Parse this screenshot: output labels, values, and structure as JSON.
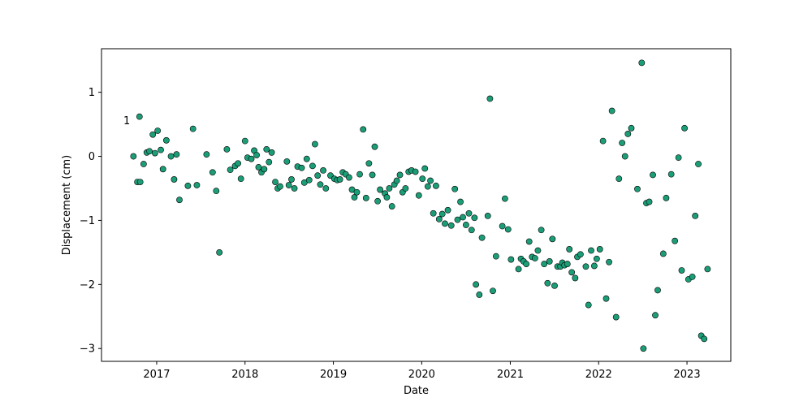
{
  "chart_data": {
    "type": "scatter",
    "title": "",
    "xlabel": "Date",
    "ylabel": "Displacement (cm)",
    "annotation": "1",
    "x_ticks": [
      "2017",
      "2018",
      "2019",
      "2020",
      "2021",
      "2022",
      "2023"
    ],
    "y_ticks": [
      -3,
      -2,
      -1,
      0,
      1
    ],
    "xlim": [
      "2016-05-18",
      "2023-07-01"
    ],
    "ylim": [
      -3.2,
      1.68
    ],
    "grid": false,
    "marker_color": "#1b9e77",
    "marker_edge_color": "#000000",
    "points": [
      {
        "x": "2016-09-27",
        "y": 0.0
      },
      {
        "x": "2016-10-13",
        "y": -0.4
      },
      {
        "x": "2016-10-22",
        "y": 0.62
      },
      {
        "x": "2016-10-25",
        "y": -0.4
      },
      {
        "x": "2016-11-08",
        "y": -0.12
      },
      {
        "x": "2016-11-21",
        "y": 0.06
      },
      {
        "x": "2016-12-02",
        "y": 0.08
      },
      {
        "x": "2016-12-16",
        "y": 0.34
      },
      {
        "x": "2016-12-25",
        "y": 0.05
      },
      {
        "x": "2017-01-05",
        "y": 0.4
      },
      {
        "x": "2017-01-18",
        "y": 0.1
      },
      {
        "x": "2017-01-27",
        "y": -0.2
      },
      {
        "x": "2017-02-10",
        "y": 0.25
      },
      {
        "x": "2017-03-01",
        "y": 0.0
      },
      {
        "x": "2017-03-14",
        "y": -0.36
      },
      {
        "x": "2017-03-24",
        "y": 0.03
      },
      {
        "x": "2017-04-05",
        "y": -0.68
      },
      {
        "x": "2017-05-10",
        "y": -0.46
      },
      {
        "x": "2017-05-31",
        "y": 0.43
      },
      {
        "x": "2017-06-16",
        "y": -0.45
      },
      {
        "x": "2017-07-26",
        "y": 0.03
      },
      {
        "x": "2017-08-20",
        "y": -0.25
      },
      {
        "x": "2017-09-04",
        "y": -0.54
      },
      {
        "x": "2017-09-17",
        "y": -1.5
      },
      {
        "x": "2017-10-18",
        "y": 0.11
      },
      {
        "x": "2017-11-01",
        "y": -0.21
      },
      {
        "x": "2017-11-21",
        "y": -0.15
      },
      {
        "x": "2017-12-03",
        "y": -0.11
      },
      {
        "x": "2017-12-15",
        "y": -0.35
      },
      {
        "x": "2018-01-01",
        "y": 0.24
      },
      {
        "x": "2018-01-11",
        "y": -0.02
      },
      {
        "x": "2018-01-27",
        "y": -0.04
      },
      {
        "x": "2018-02-08",
        "y": 0.09
      },
      {
        "x": "2018-02-18",
        "y": 0.02
      },
      {
        "x": "2018-02-26",
        "y": -0.17
      },
      {
        "x": "2018-03-10",
        "y": -0.25
      },
      {
        "x": "2018-03-21",
        "y": -0.2
      },
      {
        "x": "2018-03-31",
        "y": 0.11
      },
      {
        "x": "2018-04-10",
        "y": -0.09
      },
      {
        "x": "2018-04-21",
        "y": 0.06
      },
      {
        "x": "2018-05-06",
        "y": -0.4
      },
      {
        "x": "2018-05-16",
        "y": -0.5
      },
      {
        "x": "2018-05-26",
        "y": -0.47
      },
      {
        "x": "2018-06-23",
        "y": -0.08
      },
      {
        "x": "2018-07-01",
        "y": -0.45
      },
      {
        "x": "2018-07-12",
        "y": -0.36
      },
      {
        "x": "2018-07-24",
        "y": -0.5
      },
      {
        "x": "2018-08-06",
        "y": -0.16
      },
      {
        "x": "2018-08-23",
        "y": -0.18
      },
      {
        "x": "2018-09-03",
        "y": -0.41
      },
      {
        "x": "2018-09-13",
        "y": -0.04
      },
      {
        "x": "2018-09-23",
        "y": -0.37
      },
      {
        "x": "2018-10-07",
        "y": -0.15
      },
      {
        "x": "2018-10-17",
        "y": 0.19
      },
      {
        "x": "2018-10-28",
        "y": -0.3
      },
      {
        "x": "2018-11-08",
        "y": -0.44
      },
      {
        "x": "2018-11-20",
        "y": -0.22
      },
      {
        "x": "2018-12-01",
        "y": -0.5
      },
      {
        "x": "2018-12-20",
        "y": -0.3
      },
      {
        "x": "2019-01-05",
        "y": -0.35
      },
      {
        "x": "2019-01-17",
        "y": -0.37
      },
      {
        "x": "2019-01-28",
        "y": -0.36
      },
      {
        "x": "2019-02-09",
        "y": -0.25
      },
      {
        "x": "2019-02-21",
        "y": -0.28
      },
      {
        "x": "2019-03-07",
        "y": -0.33
      },
      {
        "x": "2019-03-19",
        "y": -0.52
      },
      {
        "x": "2019-03-29",
        "y": -0.64
      },
      {
        "x": "2019-04-08",
        "y": -0.56
      },
      {
        "x": "2019-04-20",
        "y": -0.28
      },
      {
        "x": "2019-05-04",
        "y": 0.42
      },
      {
        "x": "2019-05-16",
        "y": -0.65
      },
      {
        "x": "2019-05-28",
        "y": -0.11
      },
      {
        "x": "2019-06-11",
        "y": -0.29
      },
      {
        "x": "2019-06-21",
        "y": 0.15
      },
      {
        "x": "2019-07-03",
        "y": -0.7
      },
      {
        "x": "2019-07-13",
        "y": -0.52
      },
      {
        "x": "2019-08-02",
        "y": -0.58
      },
      {
        "x": "2019-08-10",
        "y": -0.64
      },
      {
        "x": "2019-08-20",
        "y": -0.5
      },
      {
        "x": "2019-08-31",
        "y": -0.78
      },
      {
        "x": "2019-09-10",
        "y": -0.44
      },
      {
        "x": "2019-09-20",
        "y": -0.38
      },
      {
        "x": "2019-10-03",
        "y": -0.29
      },
      {
        "x": "2019-10-14",
        "y": -0.56
      },
      {
        "x": "2019-10-26",
        "y": -0.5
      },
      {
        "x": "2019-11-08",
        "y": -0.24
      },
      {
        "x": "2019-11-20",
        "y": -0.22
      },
      {
        "x": "2019-12-06",
        "y": -0.24
      },
      {
        "x": "2019-12-20",
        "y": -0.61
      },
      {
        "x": "2020-01-04",
        "y": -0.35
      },
      {
        "x": "2020-01-14",
        "y": -0.19
      },
      {
        "x": "2020-01-26",
        "y": -0.47
      },
      {
        "x": "2020-02-06",
        "y": -0.38
      },
      {
        "x": "2020-02-18",
        "y": -0.89
      },
      {
        "x": "2020-02-29",
        "y": -0.46
      },
      {
        "x": "2020-03-13",
        "y": -0.98
      },
      {
        "x": "2020-03-26",
        "y": -0.9
      },
      {
        "x": "2020-04-06",
        "y": -1.05
      },
      {
        "x": "2020-04-18",
        "y": -0.84
      },
      {
        "x": "2020-05-02",
        "y": -1.08
      },
      {
        "x": "2020-05-17",
        "y": -0.51
      },
      {
        "x": "2020-05-28",
        "y": -0.99
      },
      {
        "x": "2020-06-09",
        "y": -0.71
      },
      {
        "x": "2020-06-19",
        "y": -0.95
      },
      {
        "x": "2020-07-02",
        "y": -1.07
      },
      {
        "x": "2020-07-14",
        "y": -0.89
      },
      {
        "x": "2020-07-25",
        "y": -1.15
      },
      {
        "x": "2020-08-06",
        "y": -0.96
      },
      {
        "x": "2020-08-12",
        "y": -2.0
      },
      {
        "x": "2020-08-26",
        "y": -2.16
      },
      {
        "x": "2020-09-06",
        "y": -1.27
      },
      {
        "x": "2020-09-30",
        "y": -0.93
      },
      {
        "x": "2020-10-09",
        "y": 0.9
      },
      {
        "x": "2020-10-21",
        "y": -2.1
      },
      {
        "x": "2020-11-03",
        "y": -1.56
      },
      {
        "x": "2020-11-29",
        "y": -1.09
      },
      {
        "x": "2020-12-10",
        "y": -0.66
      },
      {
        "x": "2020-12-23",
        "y": -1.14
      },
      {
        "x": "2021-01-04",
        "y": -1.61
      },
      {
        "x": "2021-02-04",
        "y": -1.76
      },
      {
        "x": "2021-02-14",
        "y": -1.6
      },
      {
        "x": "2021-02-25",
        "y": -1.64
      },
      {
        "x": "2021-03-08",
        "y": -1.68
      },
      {
        "x": "2021-03-20",
        "y": -1.33
      },
      {
        "x": "2021-04-01",
        "y": -1.57
      },
      {
        "x": "2021-04-13",
        "y": -1.59
      },
      {
        "x": "2021-04-25",
        "y": -1.47
      },
      {
        "x": "2021-05-09",
        "y": -1.15
      },
      {
        "x": "2021-05-21",
        "y": -1.68
      },
      {
        "x": "2021-06-04",
        "y": -1.98
      },
      {
        "x": "2021-06-12",
        "y": -1.64
      },
      {
        "x": "2021-06-24",
        "y": -1.29
      },
      {
        "x": "2021-07-03",
        "y": -2.02
      },
      {
        "x": "2021-07-15",
        "y": -1.72
      },
      {
        "x": "2021-07-27",
        "y": -1.72
      },
      {
        "x": "2021-08-04",
        "y": -1.66
      },
      {
        "x": "2021-08-13",
        "y": -1.7
      },
      {
        "x": "2021-08-25",
        "y": -1.68
      },
      {
        "x": "2021-09-02",
        "y": -1.45
      },
      {
        "x": "2021-09-12",
        "y": -1.81
      },
      {
        "x": "2021-09-26",
        "y": -1.9
      },
      {
        "x": "2021-10-05",
        "y": -1.57
      },
      {
        "x": "2021-10-18",
        "y": -1.53
      },
      {
        "x": "2021-11-09",
        "y": -1.72
      },
      {
        "x": "2021-11-20",
        "y": -2.32
      },
      {
        "x": "2021-12-01",
        "y": -1.47
      },
      {
        "x": "2021-12-14",
        "y": -1.71
      },
      {
        "x": "2021-12-24",
        "y": -1.6
      },
      {
        "x": "2022-01-06",
        "y": -1.45
      },
      {
        "x": "2022-01-19",
        "y": 0.24
      },
      {
        "x": "2022-02-01",
        "y": -2.22
      },
      {
        "x": "2022-02-13",
        "y": -1.65
      },
      {
        "x": "2022-02-25",
        "y": 0.71
      },
      {
        "x": "2022-03-14",
        "y": -2.51
      },
      {
        "x": "2022-03-26",
        "y": -0.35
      },
      {
        "x": "2022-04-08",
        "y": 0.21
      },
      {
        "x": "2022-04-20",
        "y": 0.0
      },
      {
        "x": "2022-05-02",
        "y": 0.35
      },
      {
        "x": "2022-05-16",
        "y": 0.44
      },
      {
        "x": "2022-06-10",
        "y": -0.51
      },
      {
        "x": "2022-06-28",
        "y": 1.46
      },
      {
        "x": "2022-07-05",
        "y": -3.0
      },
      {
        "x": "2022-07-17",
        "y": -0.73
      },
      {
        "x": "2022-07-29",
        "y": -0.71
      },
      {
        "x": "2022-08-13",
        "y": -0.29
      },
      {
        "x": "2022-08-23",
        "y": -2.48
      },
      {
        "x": "2022-09-02",
        "y": -2.09
      },
      {
        "x": "2022-09-25",
        "y": -1.52
      },
      {
        "x": "2022-10-07",
        "y": -0.65
      },
      {
        "x": "2022-10-28",
        "y": -0.28
      },
      {
        "x": "2022-11-12",
        "y": -1.32
      },
      {
        "x": "2022-11-27",
        "y": -0.02
      },
      {
        "x": "2022-12-10",
        "y": -1.78
      },
      {
        "x": "2022-12-22",
        "y": 0.44
      },
      {
        "x": "2023-01-07",
        "y": -1.92
      },
      {
        "x": "2023-01-23",
        "y": -1.88
      },
      {
        "x": "2023-02-04",
        "y": -0.93
      },
      {
        "x": "2023-02-17",
        "y": -0.12
      },
      {
        "x": "2023-03-01",
        "y": -2.8
      },
      {
        "x": "2023-03-13",
        "y": -2.85
      },
      {
        "x": "2023-03-27",
        "y": -1.76
      }
    ]
  }
}
